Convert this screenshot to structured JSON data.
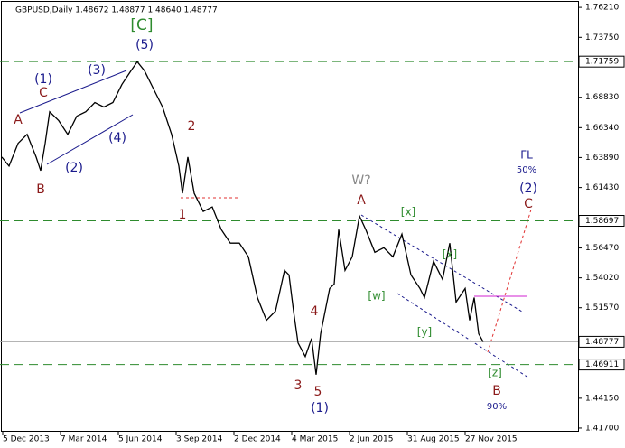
{
  "chart_data": {
    "type": "line",
    "header": "GBPUSD,Daily  1.48672 1.48877 1.48640 1.48777",
    "x": [
      2,
      10,
      20,
      30,
      40,
      45,
      50,
      55,
      65,
      75,
      85,
      95,
      105,
      115,
      125,
      135,
      145,
      152,
      160,
      170,
      180,
      190,
      198,
      202,
      208,
      215,
      225,
      235,
      245,
      255,
      265,
      275,
      285,
      295,
      305,
      315,
      320,
      325,
      330,
      338,
      345,
      350,
      355,
      365,
      370,
      375,
      382,
      390,
      398,
      405,
      415,
      425,
      435,
      445,
      455,
      465,
      470,
      480,
      490,
      498,
      505,
      515,
      520,
      525,
      530,
      535
    ],
    "values": [
      1.6393,
      1.6319,
      1.6505,
      1.6579,
      1.6393,
      1.6282,
      1.6505,
      1.6765,
      1.6691,
      1.6579,
      1.6728,
      1.6765,
      1.684,
      1.6803,
      1.684,
      1.6989,
      1.71,
      1.7175,
      1.71,
      1.6951,
      1.6803,
      1.6579,
      1.6319,
      1.6096,
      1.6393,
      1.6096,
      1.5947,
      1.5984,
      1.5798,
      1.5687,
      1.5687,
      1.5575,
      1.524,
      1.5054,
      1.5129,
      1.5463,
      1.5426,
      1.5129,
      1.4868,
      1.4757,
      1.4905,
      1.4608,
      1.4943,
      1.5315,
      1.5352,
      1.5798,
      1.5463,
      1.5575,
      1.591,
      1.5798,
      1.5612,
      1.5649,
      1.5575,
      1.5761,
      1.5426,
      1.5315,
      1.524,
      1.5538,
      1.5389,
      1.5687,
      1.5203,
      1.5315,
      1.5054,
      1.524,
      1.4943,
      1.4878
    ],
    "color": "#000000",
    "xlim": [
      0,
      640
    ],
    "xticks": [
      {
        "value": 3,
        "label": "5 Dec 2013"
      },
      {
        "value": 67,
        "label": "7 Mar 2014"
      },
      {
        "value": 131,
        "label": "5 Jun 2014"
      },
      {
        "value": 195,
        "label": "3 Sep 2014"
      },
      {
        "value": 259,
        "label": "2 Dec 2014"
      },
      {
        "value": 323,
        "label": "4 Mar 2015"
      },
      {
        "value": 387,
        "label": "2 Jun 2015"
      },
      {
        "value": 451,
        "label": "31 Aug 2015"
      },
      {
        "value": 515,
        "label": "27 Nov 2015"
      }
    ],
    "ylim": [
      1.414,
      1.7681
    ],
    "yticks": [
      {
        "value": 1.7621,
        "label": "1.76210"
      },
      {
        "value": 1.7375,
        "label": "1.73750"
      },
      {
        "value": 1.6883,
        "label": "1.68830"
      },
      {
        "value": 1.6634,
        "label": "1.66340"
      },
      {
        "value": 1.6389,
        "label": "1.63890"
      },
      {
        "value": 1.6143,
        "label": "1.61430"
      },
      {
        "value": 1.5647,
        "label": "1.56470"
      },
      {
        "value": 1.5402,
        "label": "1.54020"
      },
      {
        "value": 1.5157,
        "label": "1.51570"
      },
      {
        "value": 1.4415,
        "label": "1.44150"
      },
      {
        "value": 1.417,
        "label": "1.41700"
      }
    ],
    "levels": [
      {
        "value": 1.71759,
        "color": "#2e8b2e"
      },
      {
        "value": 1.58697,
        "color": "#2e8b2e"
      },
      {
        "value": 1.48777,
        "color": "#aaaaaa"
      },
      {
        "value": 1.46911,
        "color": "#2e8b2e"
      }
    ],
    "annotations": [
      {
        "text": "[C]",
        "color": "#2e8b2e"
      },
      {
        "text": "(5)",
        "color": "#1a1a8c"
      },
      {
        "text": "(1)",
        "color": "#1a1a8c"
      },
      {
        "text": "(3)",
        "color": "#1a1a8c"
      },
      {
        "text": "C",
        "color": "#8b1a1a"
      },
      {
        "text": "A",
        "color": "#8b1a1a"
      },
      {
        "text": "(4)",
        "color": "#1a1a8c"
      },
      {
        "text": "(2)",
        "color": "#1a1a8c"
      },
      {
        "text": "B",
        "color": "#8b1a1a"
      },
      {
        "text": "2",
        "color": "#8b1a1a"
      },
      {
        "text": "1",
        "color": "#8b1a1a"
      },
      {
        "text": "W?",
        "color": "#888888"
      },
      {
        "text": "A",
        "color": "#8b1a1a"
      },
      {
        "text": "[x]",
        "color": "#2e8b2e"
      },
      {
        "text": "[x]",
        "color": "#2e8b2e"
      },
      {
        "text": "[w]",
        "color": "#2e8b2e"
      },
      {
        "text": "[y]",
        "color": "#2e8b2e"
      },
      {
        "text": "4",
        "color": "#8b1a1a"
      },
      {
        "text": "3",
        "color": "#8b1a1a"
      },
      {
        "text": "5",
        "color": "#8b1a1a"
      },
      {
        "text": "(1)",
        "color": "#1a1a8c"
      },
      {
        "text": "[z]",
        "color": "#2e8b2e"
      },
      {
        "text": "B",
        "color": "#8b1a1a"
      },
      {
        "text": "90%",
        "color": "#1a1a8c"
      },
      {
        "text": "FL",
        "color": "#1a1a8c"
      },
      {
        "text": "50%",
        "color": "#1a1a8c"
      },
      {
        "text": "(2)",
        "color": "#1a1a8c"
      },
      {
        "text": "C",
        "color": "#8b1a1a"
      }
    ]
  }
}
